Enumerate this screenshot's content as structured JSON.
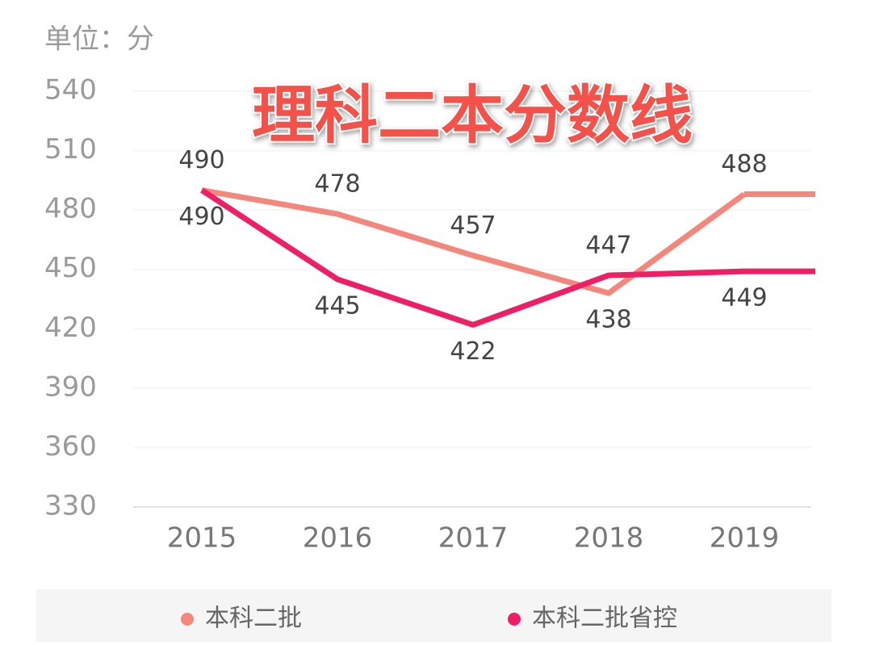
{
  "chart_data": {
    "type": "line",
    "title": "理科二本分数线",
    "unit_label": "单位：分",
    "categories": [
      "2015",
      "2016",
      "2017",
      "2018",
      "2019"
    ],
    "series": [
      {
        "name": "本科二批",
        "color": "#f4877c",
        "values": [
          490,
          478,
          457,
          438,
          488
        ]
      },
      {
        "name": "本科二批省控",
        "color": "#ee1f64",
        "values": [
          490,
          445,
          422,
          447,
          449
        ]
      }
    ],
    "ylim": [
      330,
      540
    ],
    "yticks": [
      330,
      360,
      390,
      420,
      450,
      480,
      510,
      540
    ],
    "grid": true
  }
}
